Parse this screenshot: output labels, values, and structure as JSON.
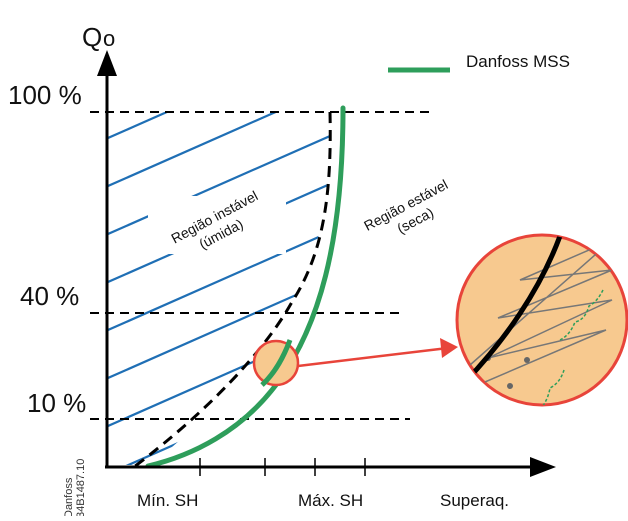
{
  "y_axis": {
    "label": "Q",
    "label_sub": "o"
  },
  "x_axis": {
    "label": "Superaq."
  },
  "levels": [
    {
      "label": "100 %",
      "value": 100
    },
    {
      "label": "40 %",
      "value": 40
    },
    {
      "label": "10 %",
      "value": 10
    }
  ],
  "x_ticks": [
    {
      "label": "Mín. SH"
    },
    {
      "label": "Máx. SH"
    }
  ],
  "legend": {
    "label": "Danfoss MSS",
    "color": "#2e9e5b"
  },
  "regions": {
    "unstable": {
      "line1": "Região instável",
      "line2": "(úmida)"
    },
    "stable": {
      "line1": "Região estável",
      "line2": "(seca)"
    }
  },
  "stamp": {
    "line1": "Danfoss",
    "line2": "34B1487.10"
  },
  "colors": {
    "hatch": "#1f6fb5",
    "curve": "#2e9e5b",
    "zoom_fill": "#f7c98f",
    "zoom_border": "#e8443a",
    "arrow": "#e8443a",
    "axis": "#000000"
  }
}
